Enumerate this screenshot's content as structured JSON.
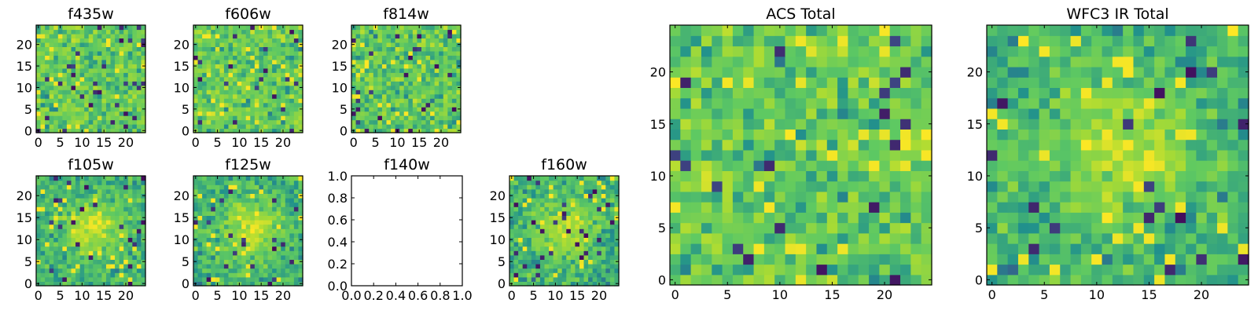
{
  "colormap": [
    "#440154",
    "#3b528b",
    "#21918c",
    "#5ec962",
    "#a8db34",
    "#fde725"
  ],
  "chart_data": [
    {
      "type": "heatmap",
      "title": "f435w",
      "grid": [
        25,
        25
      ],
      "x_ticks": [
        "0",
        "5",
        "10",
        "15",
        "20"
      ],
      "y_ticks": [
        "0",
        "5",
        "10",
        "15",
        "20"
      ],
      "texture": "noise"
    },
    {
      "type": "heatmap",
      "title": "f606w",
      "grid": [
        25,
        25
      ],
      "x_ticks": [
        "0",
        "5",
        "10",
        "15",
        "20"
      ],
      "y_ticks": [
        "0",
        "5",
        "10",
        "15",
        "20"
      ],
      "texture": "noise"
    },
    {
      "type": "heatmap",
      "title": "f814w",
      "grid": [
        25,
        25
      ],
      "x_ticks": [
        "0",
        "5",
        "10",
        "15",
        "20"
      ],
      "y_ticks": [
        "0",
        "5",
        "10",
        "15",
        "20"
      ],
      "texture": "noise"
    },
    {
      "type": "heatmap",
      "title": "f105w",
      "grid": [
        25,
        25
      ],
      "x_ticks": [
        "0",
        "5",
        "10",
        "15",
        "20"
      ],
      "y_ticks": [
        "0",
        "5",
        "10",
        "15",
        "20"
      ],
      "texture": "central source"
    },
    {
      "type": "heatmap",
      "title": "f125w",
      "grid": [
        25,
        25
      ],
      "x_ticks": [
        "0",
        "5",
        "10",
        "15",
        "20"
      ],
      "y_ticks": [
        "0",
        "5",
        "10",
        "15",
        "20"
      ],
      "texture": "central source"
    },
    {
      "type": "empty",
      "title": "f140w",
      "xlim": [
        0.0,
        1.0
      ],
      "ylim": [
        0.0,
        1.0
      ],
      "x_ticks": [
        "0.0",
        "0.2",
        "0.4",
        "0.6",
        "0.8",
        "1.0"
      ],
      "y_ticks": [
        "0.0",
        "0.2",
        "0.4",
        "0.6",
        "0.8",
        "1.0"
      ]
    },
    {
      "type": "heatmap",
      "title": "f160w",
      "grid": [
        25,
        25
      ],
      "x_ticks": [
        "0",
        "5",
        "10",
        "15",
        "20"
      ],
      "y_ticks": [
        "0",
        "5",
        "10",
        "15",
        "20"
      ],
      "texture": "central source"
    },
    {
      "type": "heatmap",
      "title": "ACS Total",
      "grid": [
        25,
        25
      ],
      "x_ticks": [
        "0",
        "5",
        "10",
        "15",
        "20"
      ],
      "y_ticks": [
        "0",
        "5",
        "10",
        "15",
        "20"
      ],
      "texture": "noise"
    },
    {
      "type": "heatmap",
      "title": "WFC3 IR Total",
      "grid": [
        25,
        25
      ],
      "x_ticks": [
        "0",
        "5",
        "10",
        "15",
        "20"
      ],
      "y_ticks": [
        "0",
        "5",
        "10",
        "15",
        "20"
      ],
      "texture": "central source"
    }
  ]
}
